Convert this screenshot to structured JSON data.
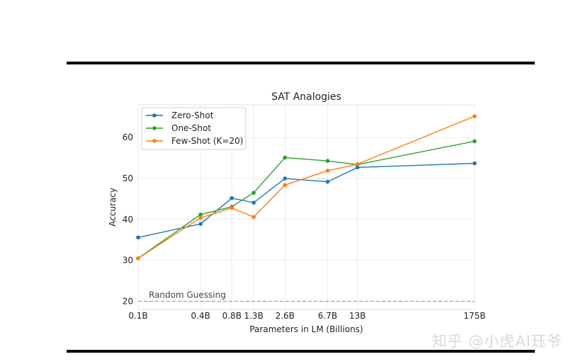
{
  "chart_data": {
    "type": "line",
    "title": "SAT Analogies",
    "xlabel": "Parameters in LM (Billions)",
    "ylabel": "Accuracy",
    "categories": [
      "0.1B",
      "0.4B",
      "0.8B",
      "1.3B",
      "2.6B",
      "6.7B",
      "13B",
      "175B"
    ],
    "x": [
      0.1,
      0.4,
      0.8,
      1.3,
      2.6,
      6.7,
      13,
      175
    ],
    "ylim": [
      18,
      68
    ],
    "yticks": [
      20,
      30,
      40,
      50,
      60
    ],
    "grid": true,
    "legend_position": "upper-left",
    "series": [
      {
        "name": "Zero-Shot",
        "color": "#1f77b4",
        "values": [
          35.6,
          38.9,
          45.2,
          44.1,
          50.0,
          49.2,
          52.7,
          53.7
        ]
      },
      {
        "name": "One-Shot",
        "color": "#2ca02c",
        "values": [
          30.5,
          41.2,
          43.1,
          46.5,
          55.1,
          54.3,
          53.4,
          59.1
        ]
      },
      {
        "name": "Few-Shot (K=20)",
        "color": "#ff7f0e",
        "values": [
          30.5,
          40.4,
          42.8,
          40.6,
          48.4,
          51.9,
          53.5,
          65.2
        ]
      }
    ],
    "baseline": {
      "label": "Random Guessing",
      "value": 20
    }
  },
  "watermark": "知乎 @小虎AI珏爷"
}
